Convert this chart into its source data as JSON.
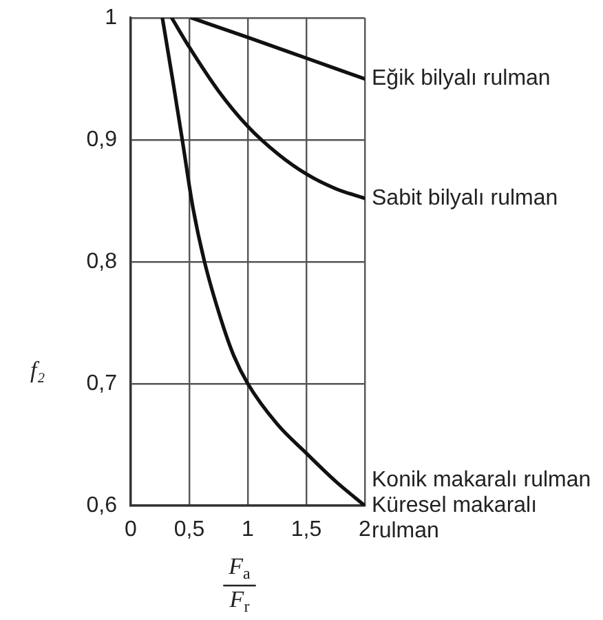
{
  "chart_data": {
    "type": "line",
    "xlabel": "F$_{a}$\nF$_{r}$",
    "ylabel": "f₂",
    "xlim": [
      0,
      2
    ],
    "ylim": [
      0.6,
      1
    ],
    "xticks": [
      0,
      {
        "value": 0.5,
        "label": "0,5"
      },
      1,
      {
        "value": 1.5,
        "label": "1,5"
      },
      2
    ],
    "yticks": [
      {
        "value": 0.6,
        "label": "0,6"
      },
      {
        "value": 0.7,
        "label": "0,7"
      },
      {
        "value": 0.8,
        "label": "0,8"
      },
      {
        "value": 0.9,
        "label": "0,9"
      },
      1
    ],
    "grid": true,
    "legend": false,
    "marker": "none",
    "line_style": "solid",
    "series": [
      {
        "name": "Eğik bilyalı rulman",
        "color": "#111111",
        "x": [
          0.52,
          1,
          1.5,
          2
        ],
        "values": [
          1,
          0.984,
          0.967,
          0.95
        ]
      },
      {
        "name": "Sabit bilyalı rulman",
        "color": "#111111",
        "x": [
          0.35,
          0.5,
          0.75,
          1,
          1.25,
          1.5,
          1.75,
          2
        ],
        "values": [
          1,
          0.976,
          0.94,
          0.911,
          0.889,
          0.872,
          0.86,
          0.852
        ]
      },
      {
        "name": "Konik makaralı rulman\nKüresel makaralı rulman",
        "color": "#111111",
        "x": [
          0.27,
          0.36,
          0.44,
          0.53,
          0.63,
          0.77,
          0.88,
          1,
          1.25,
          1.5,
          1.75,
          2
        ],
        "values": [
          1,
          0.948,
          0.9,
          0.845,
          0.8,
          0.753,
          0.723,
          0.7,
          0.667,
          0.643,
          0.62,
          0.6
        ]
      }
    ]
  }
}
